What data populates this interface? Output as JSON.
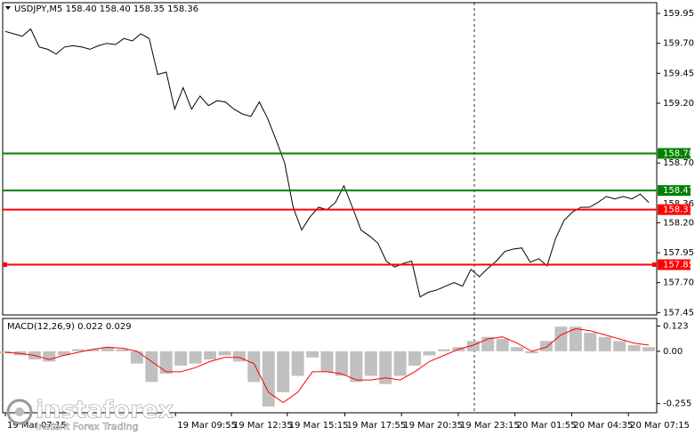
{
  "chart_data": [
    {
      "type": "line",
      "title": "USDJPY,M5 158.40 158.40 158.35 158.36",
      "color": "#000000",
      "values": [
        159.8,
        159.78,
        159.76,
        159.82,
        159.67,
        159.65,
        159.61,
        159.67,
        159.68,
        159.67,
        159.65,
        159.68,
        159.7,
        159.69,
        159.74,
        159.72,
        159.78,
        159.74,
        159.44,
        159.46,
        159.15,
        159.33,
        159.15,
        159.26,
        159.18,
        159.22,
        159.21,
        159.15,
        159.11,
        159.09,
        159.21,
        159.07,
        158.89,
        158.7,
        158.33,
        158.14,
        158.25,
        158.33,
        158.31,
        158.37,
        158.51,
        158.33,
        158.14,
        158.09,
        158.03,
        157.88,
        157.83,
        157.86,
        157.88,
        157.58,
        157.62,
        157.64,
        157.67,
        157.7,
        157.67,
        157.81,
        157.75,
        157.82,
        157.88,
        157.96,
        157.98,
        157.99,
        157.87,
        157.9,
        157.84,
        158.07,
        158.22,
        158.29,
        158.33,
        158.33,
        158.37,
        158.42,
        158.4,
        158.42,
        158.4,
        158.44,
        158.37
      ],
      "xlim": [
        0,
        76
      ],
      "ylim": [
        157.43,
        160.04
      ],
      "yticks": [
        159.95,
        {
          "value": 159.7,
          "label": "159.70"
        },
        159.45,
        {
          "value": 159.2,
          "label": "159.20"
        },
        {
          "value": 158.7,
          "label": "158.70"
        },
        {
          "value": 158.2,
          "label": "158.20"
        },
        157.95,
        {
          "value": 157.7,
          "label": "157.70"
        },
        157.45
      ],
      "xticks": [
        {
          "value": 0,
          "label": "19 Mar 07:15"
        },
        {
          "value": 20.1,
          "label": "19 Mar 09:55"
        },
        {
          "value": 26.7,
          "label": "19 Mar 12:35"
        },
        {
          "value": 33.3,
          "label": "19 Mar 15:15"
        },
        {
          "value": 40.1,
          "label": "19 Mar 17:55"
        },
        {
          "value": 46.8,
          "label": "19 Mar 20:35"
        },
        {
          "value": 53.5,
          "label": "19 Mar 23:15"
        },
        {
          "value": 60.2,
          "label": "20 Mar 01:55"
        },
        {
          "value": 66.9,
          "label": "20 Mar 04:35"
        },
        {
          "value": 73.6,
          "label": "20 Mar 07:15"
        }
      ],
      "levels": [
        {
          "value": 158.78,
          "color": "#008000"
        },
        {
          "value": 158.47,
          "color": "#008000"
        },
        {
          "value": 158.31,
          "color": "#ff0000"
        },
        {
          "value": 157.85,
          "color": "#ff0000"
        }
      ],
      "current_price": 158.36
    },
    {
      "type": "macd",
      "title": "MACD(12,26,9) 0.022 0.029",
      "histogram_color": "#c0c0c0",
      "signal_color": "#ff0000",
      "values": [
        -0.01,
        -0.02,
        -0.04,
        -0.05,
        -0.02,
        0.01,
        0.01,
        0.02,
        0.01,
        -0.06,
        -0.15,
        -0.11,
        -0.07,
        -0.06,
        -0.04,
        -0.02,
        -0.05,
        -0.15,
        -0.27,
        -0.2,
        -0.12,
        -0.03,
        -0.1,
        -0.12,
        -0.15,
        -0.12,
        -0.16,
        -0.12,
        -0.07,
        -0.02,
        0.01,
        0.02,
        0.05,
        0.07,
        0.06,
        0.02,
        -0.01,
        0.05,
        0.12,
        0.12,
        0.09,
        0.07,
        0.05,
        0.03,
        0.02
      ],
      "signal": [
        -0.005,
        -0.01,
        -0.02,
        -0.04,
        -0.02,
        -0.005,
        0.01,
        0.02,
        0.015,
        0.0,
        -0.05,
        -0.1,
        -0.1,
        -0.08,
        -0.05,
        -0.03,
        -0.03,
        -0.06,
        -0.2,
        -0.25,
        -0.2,
        -0.1,
        -0.1,
        -0.11,
        -0.14,
        -0.14,
        -0.13,
        -0.14,
        -0.1,
        -0.05,
        -0.02,
        0.01,
        0.03,
        0.06,
        0.07,
        0.04,
        0.0,
        0.02,
        0.08,
        0.11,
        0.1,
        0.08,
        0.06,
        0.04,
        0.03
      ],
      "xlim": [
        0,
        44
      ],
      "ylim": [
        -0.3,
        0.16
      ],
      "yticks": [
        0.123,
        {
          "value": 0,
          "label": "0.00"
        },
        -0.255
      ]
    }
  ],
  "watermark": {
    "brand": "instaforex",
    "tagline": "Instant Forex Trading"
  }
}
